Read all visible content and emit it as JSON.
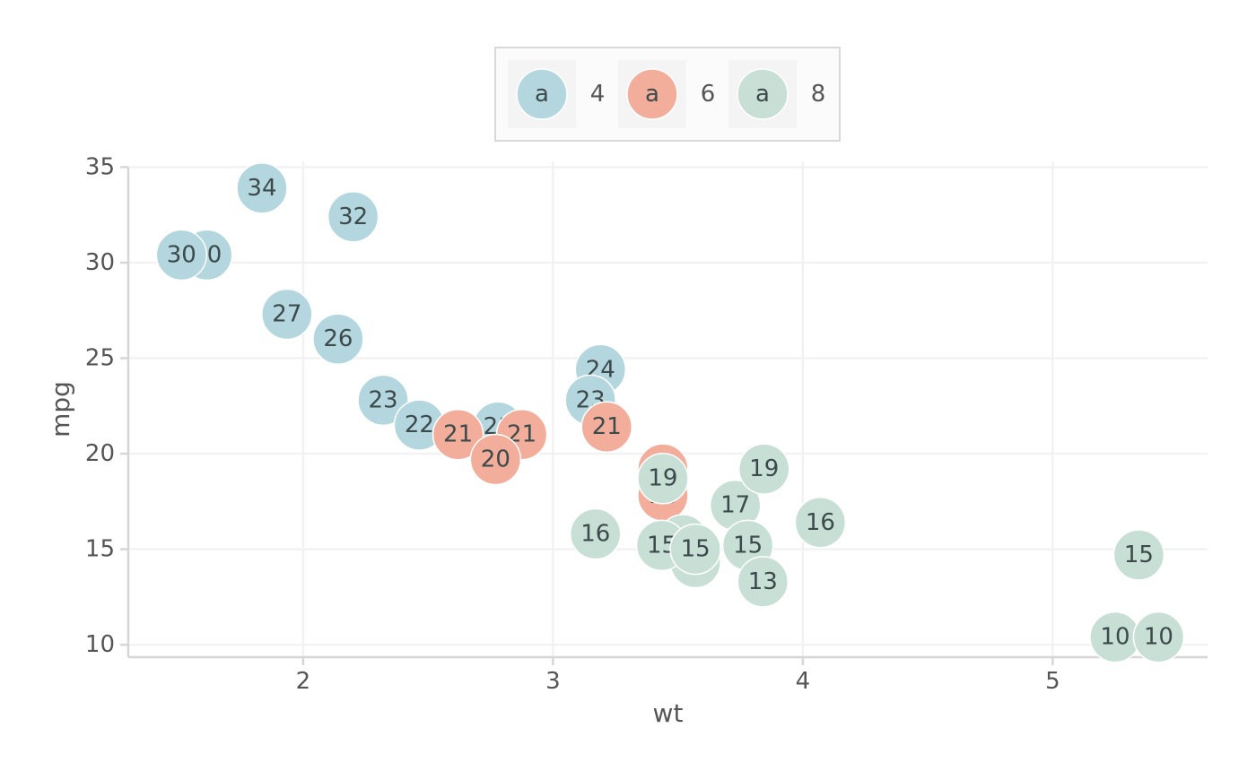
{
  "chart_data": {
    "type": "scatter",
    "xlabel": "wt",
    "ylabel": "mpg",
    "xlim": [
      1.3,
      5.62
    ],
    "ylim": [
      9.35,
      35.3
    ],
    "x_ticks": [
      2,
      3,
      4,
      5
    ],
    "y_ticks": [
      10,
      15,
      20,
      25,
      30,
      35
    ],
    "grid": true,
    "legend": {
      "placement": "top",
      "key_letter": "a",
      "entries": [
        {
          "label": "4",
          "color": "#b4d7df"
        },
        {
          "label": "6",
          "color": "#f2ad9b"
        },
        {
          "label": "8",
          "color": "#c8dfd6"
        }
      ]
    },
    "series": [
      {
        "name": "4",
        "color": "#b4d7df",
        "points": [
          {
            "x": 2.32,
            "y": 22.8,
            "label": "23"
          },
          {
            "x": 3.19,
            "y": 24.4,
            "label": "24"
          },
          {
            "x": 3.15,
            "y": 22.8,
            "label": "23"
          },
          {
            "x": 2.2,
            "y": 32.4,
            "label": "32"
          },
          {
            "x": 1.615,
            "y": 30.4,
            "label": "30"
          },
          {
            "x": 1.835,
            "y": 33.9,
            "label": "34"
          },
          {
            "x": 2.465,
            "y": 21.5,
            "label": "22"
          },
          {
            "x": 1.935,
            "y": 27.3,
            "label": "27"
          },
          {
            "x": 2.14,
            "y": 26.0,
            "label": "26"
          },
          {
            "x": 1.513,
            "y": 30.4,
            "label": "30"
          },
          {
            "x": 2.78,
            "y": 21.4,
            "label": "21"
          }
        ]
      },
      {
        "name": "6",
        "color": "#f2ad9b",
        "points": [
          {
            "x": 2.62,
            "y": 21.0,
            "label": "21"
          },
          {
            "x": 2.875,
            "y": 21.0,
            "label": "21"
          },
          {
            "x": 3.215,
            "y": 21.4,
            "label": "21"
          },
          {
            "x": 3.44,
            "y": 18.1,
            "label": "18"
          },
          {
            "x": 3.44,
            "y": 19.2,
            "label": "19"
          },
          {
            "x": 3.44,
            "y": 17.8,
            "label": "18"
          },
          {
            "x": 2.77,
            "y": 19.7,
            "label": "20"
          }
        ]
      },
      {
        "name": "8",
        "color": "#c8dfd6",
        "points": [
          {
            "x": 3.44,
            "y": 18.7,
            "label": "19"
          },
          {
            "x": 3.57,
            "y": 14.3,
            "label": "14"
          },
          {
            "x": 4.07,
            "y": 16.4,
            "label": "16"
          },
          {
            "x": 3.73,
            "y": 17.3,
            "label": "17"
          },
          {
            "x": 3.78,
            "y": 15.2,
            "label": "15"
          },
          {
            "x": 5.25,
            "y": 10.4,
            "label": "10"
          },
          {
            "x": 5.424,
            "y": 10.4,
            "label": "10"
          },
          {
            "x": 5.345,
            "y": 14.7,
            "label": "15"
          },
          {
            "x": 3.52,
            "y": 15.5,
            "label": "16"
          },
          {
            "x": 3.435,
            "y": 15.2,
            "label": "15"
          },
          {
            "x": 3.84,
            "y": 13.3,
            "label": "13"
          },
          {
            "x": 3.845,
            "y": 19.2,
            "label": "19"
          },
          {
            "x": 3.17,
            "y": 15.8,
            "label": "16"
          },
          {
            "x": 3.57,
            "y": 15.0,
            "label": "15"
          }
        ]
      }
    ]
  }
}
